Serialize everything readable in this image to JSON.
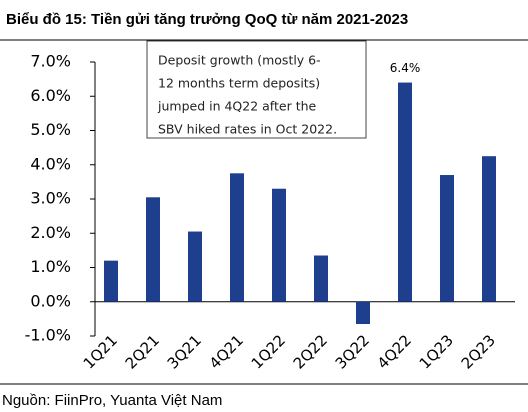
{
  "chart_data": {
    "type": "bar",
    "title": "Biểu đồ 15: Tiền gửi tăng trưởng QoQ từ năm 2021-2023",
    "categories": [
      "1Q21",
      "2Q21",
      "3Q21",
      "4Q21",
      "1Q22",
      "2Q22",
      "3Q22",
      "4Q22",
      "1Q23",
      "2Q23"
    ],
    "values": [
      1.2,
      3.05,
      2.05,
      3.75,
      3.3,
      1.35,
      -0.65,
      6.4,
      3.7,
      4.25
    ],
    "value_labels": [
      null,
      null,
      null,
      null,
      null,
      null,
      null,
      "6.4%",
      null,
      null
    ],
    "color": "#1d3f8e",
    "ylim": [
      -1,
      7
    ],
    "yticks": [
      {
        "value": -1,
        "label": "-1.0%"
      },
      {
        "value": 0,
        "label": "0.0%"
      },
      {
        "value": 1,
        "label": "1.0%"
      },
      {
        "value": 2,
        "label": "2.0%"
      },
      {
        "value": 3,
        "label": "3.0%"
      },
      {
        "value": 4,
        "label": "4.0%"
      },
      {
        "value": 5,
        "label": "5.0%"
      },
      {
        "value": 6,
        "label": "6.0%"
      },
      {
        "value": 7,
        "label": "7.0%"
      }
    ],
    "grid": false,
    "annotation": [
      "Deposit growth (mostly 6-",
      "12 months term deposits)",
      "jumped in 4Q22 after the",
      "SBV hiked rates in Oct 2022."
    ],
    "source": "Nguồn: FiinPro, Yuanta Việt Nam"
  }
}
